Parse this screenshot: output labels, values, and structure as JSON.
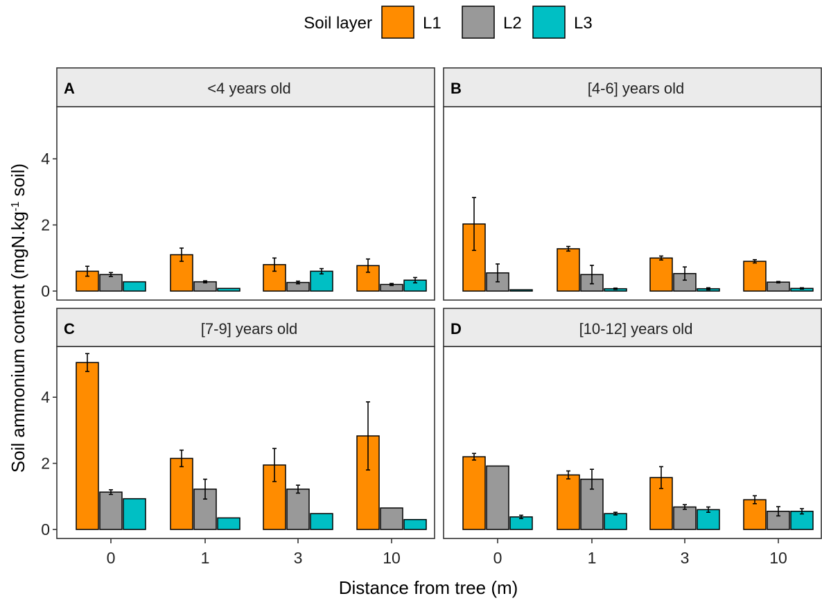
{
  "chart_data": {
    "type": "bar",
    "legend": {
      "title": "Soil layer",
      "position": "top",
      "entries": [
        "L1",
        "L2",
        "L3"
      ]
    },
    "colors": {
      "L1": "#FF8C00",
      "L2": "#999999",
      "L3": "#00BFC4"
    },
    "xlabel": "Distance from tree (m)",
    "ylabel": {
      "main": "Soil ammonium content (mgN.kg",
      "superscript": "-1",
      "tail": " soil)"
    },
    "categories": [
      "0",
      "1",
      "3",
      "10"
    ],
    "yticks": [
      0,
      2,
      4
    ],
    "ylim": [
      0,
      5.6
    ],
    "grid": false,
    "panels": [
      {
        "letter": "A",
        "title": "<4 years old",
        "series": [
          {
            "name": "L1",
            "values": [
              0.6,
              1.1,
              0.8,
              0.77
            ],
            "err": [
              0.15,
              0.2,
              0.2,
              0.2
            ]
          },
          {
            "name": "L2",
            "values": [
              0.5,
              0.28,
              0.26,
              0.2
            ],
            "err": [
              0.06,
              0.03,
              0.04,
              0.03
            ]
          },
          {
            "name": "L3",
            "values": [
              0.28,
              0.08,
              0.6,
              0.33
            ],
            "err": [
              0,
              0,
              0.08,
              0.08
            ]
          }
        ]
      },
      {
        "letter": "B",
        "title": "[4-6] years old",
        "series": [
          {
            "name": "L1",
            "values": [
              2.03,
              1.28,
              1.0,
              0.9
            ],
            "err": [
              0.8,
              0.07,
              0.06,
              0.05
            ]
          },
          {
            "name": "L2",
            "values": [
              0.55,
              0.5,
              0.53,
              0.27
            ],
            "err": [
              0.27,
              0.28,
              0.2,
              0.02
            ]
          },
          {
            "name": "L3",
            "values": [
              0.04,
              0.07,
              0.07,
              0.08
            ],
            "err": [
              0,
              0.02,
              0.03,
              0.02
            ]
          }
        ]
      },
      {
        "letter": "C",
        "title": "[7-9] years old",
        "series": [
          {
            "name": "L1",
            "values": [
              5.05,
              2.15,
              1.95,
              2.83
            ],
            "err": [
              0.27,
              0.25,
              0.5,
              1.03
            ]
          },
          {
            "name": "L2",
            "values": [
              1.13,
              1.22,
              1.22,
              0.65
            ],
            "err": [
              0.07,
              0.3,
              0.12,
              0
            ]
          },
          {
            "name": "L3",
            "values": [
              0.93,
              0.35,
              0.48,
              0.3
            ],
            "err": [
              0,
              0,
              0,
              0
            ]
          }
        ]
      },
      {
        "letter": "D",
        "title": "[10-12] years old",
        "series": [
          {
            "name": "L1",
            "values": [
              2.2,
              1.65,
              1.57,
              0.9
            ],
            "err": [
              0.1,
              0.12,
              0.33,
              0.12
            ]
          },
          {
            "name": "L2",
            "values": [
              1.92,
              1.52,
              0.68,
              0.55
            ],
            "err": [
              0,
              0.3,
              0.07,
              0.14
            ]
          },
          {
            "name": "L3",
            "values": [
              0.38,
              0.48,
              0.6,
              0.55
            ],
            "err": [
              0.05,
              0.04,
              0.08,
              0.08
            ]
          }
        ]
      }
    ]
  }
}
